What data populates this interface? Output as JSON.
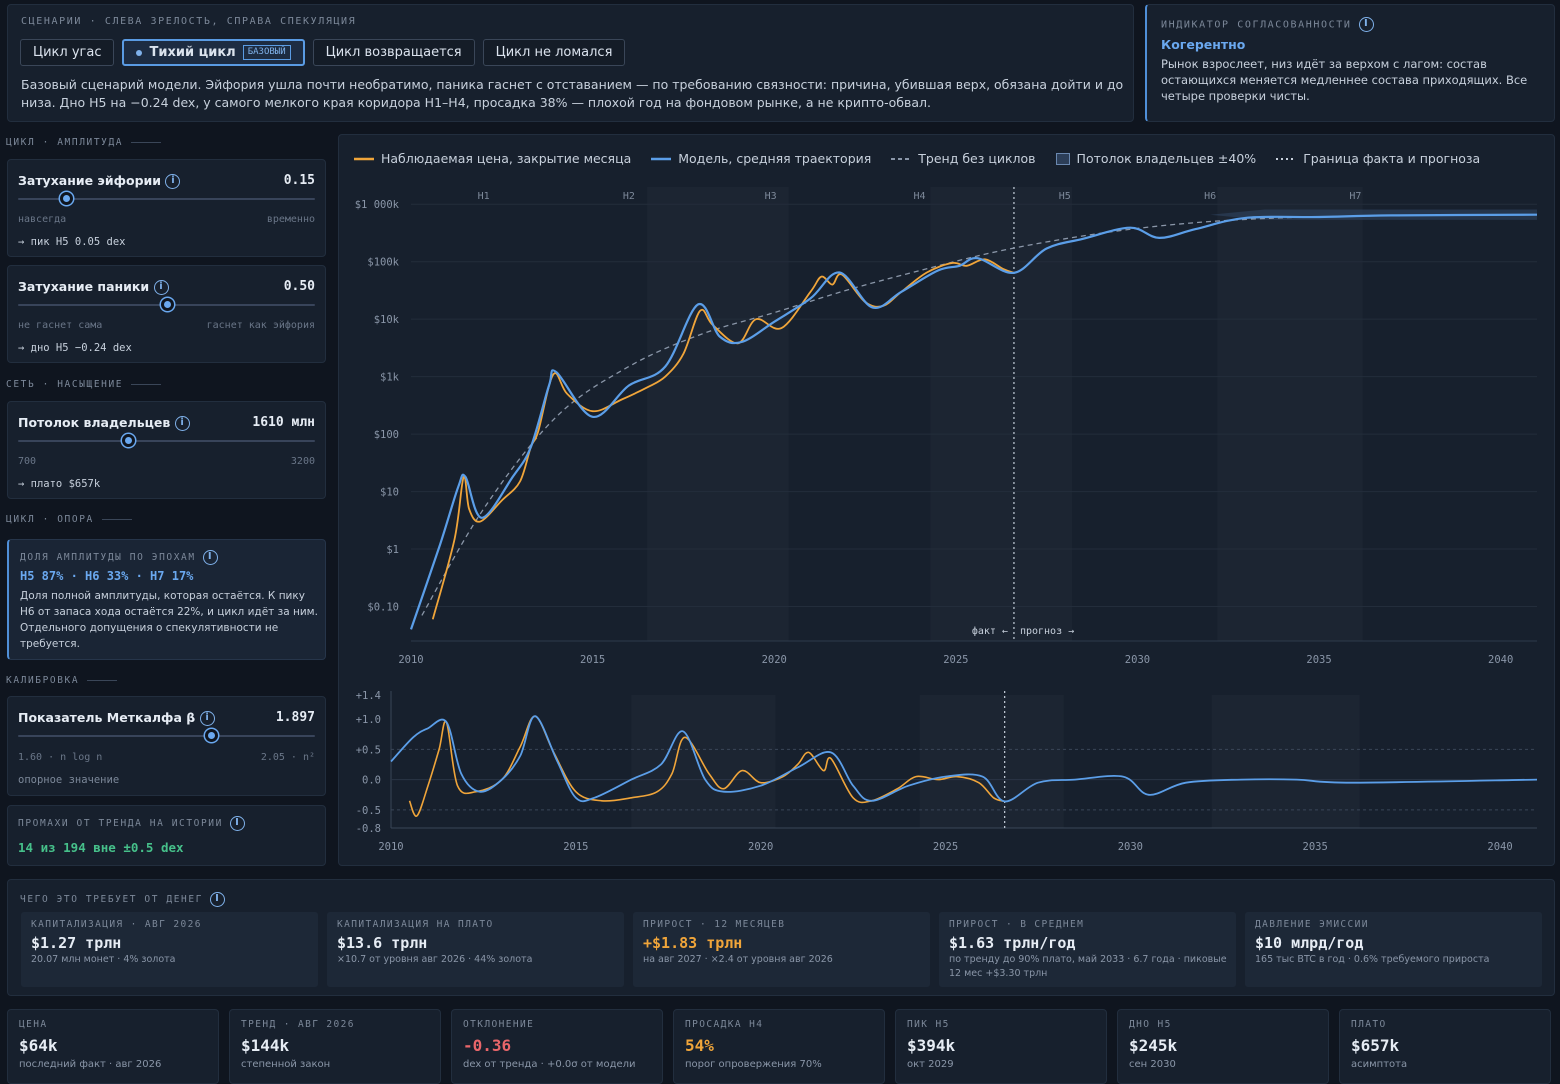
{
  "scenarios": {
    "caption": "СЦЕНАРИИ · СЛЕВА ЗРЕЛОСТЬ, СПРАВА СПЕКУЛЯЦИЯ",
    "tabs": [
      {
        "label": "Цикл угас"
      },
      {
        "label": "Тихий цикл",
        "badge": "БАЗОВЫЙ",
        "active": true
      },
      {
        "label": "Цикл возвращается"
      },
      {
        "label": "Цикл не ломался"
      }
    ],
    "description": "Базовый сценарий модели. Эйфория ушла почти необратимо, паника гаснет с отставанием — по требованию связности: причина, убившая верх, обязана дойти и до низа. Дно H5 на −0.24 dex, у самого мелкого края коридора H1–H4, просадка 38% — плохой год на фондовом рынке, а не крипто-обвал."
  },
  "coherence": {
    "caption": "ИНДИКАТОР СОГЛАСОВАННОСТИ",
    "status": "Когерентно",
    "text": "Рынок взрослеет, низ идёт за верхом с лагом: состав остающихся меняется медленнее состава приходящих. Все четыре проверки чисты."
  },
  "sidebar": {
    "section_amplitude": "ЦИКЛ · АМПЛИТУДА",
    "euphoria": {
      "label": "Затухание эйфории",
      "value": "0.15",
      "pos": 0.14,
      "left": "навсегда",
      "right": "временно",
      "result": "→ пик H5 0.05 dex"
    },
    "panic": {
      "label": "Затухание паники",
      "value": "0.50",
      "pos": 0.5,
      "left": "не гаснет сама",
      "right": "гаснет как эйфория",
      "result": "→ дно H5 −0.24 dex"
    },
    "section_network": "СЕТЬ · НАСЫЩЕНИЕ",
    "holders": {
      "label": "Потолок владельцев",
      "value": "1610 млн",
      "pos": 0.36,
      "left": "700",
      "right": "3200",
      "result": "→ плато $657k"
    },
    "section_support": "ЦИКЛ · ОПОРА",
    "amp_share": {
      "caption": "ДОЛЯ АМПЛИТУДЫ ПО ЭПОХАМ",
      "values": "H5 87% · H6 33% · H7 17%",
      "text": "Доля полной амплитуды, которая остаётся. К пику H6 от запаса хода остаётся 22%, и цикл идёт за ним. Отдельного допущения о спекулятивности не требуется."
    },
    "section_calibration": "КАЛИБРОВКА",
    "metcalfe": {
      "label": "Показатель Меткалфа β",
      "value": "1.897",
      "pos": 0.65,
      "left": "1.60 · n log n",
      "right": "2.05 · n²",
      "result": "опорное значение"
    },
    "misses": {
      "caption": "ПРОМАХИ ОТ ТРЕНДА НА ИСТОРИИ",
      "value": "14 из 194 вне ±0.5 dex"
    }
  },
  "legend": [
    {
      "label": "Наблюдаемая цена, закрытие месяца",
      "kind": "orange"
    },
    {
      "label": "Модель, средняя траектория",
      "kind": "blue"
    },
    {
      "label": "Тренд без циклов",
      "kind": "dash"
    },
    {
      "label": "Потолок владельцев ±40%",
      "kind": "band"
    },
    {
      "label": "Граница факта и прогноза",
      "kind": "dot"
    }
  ],
  "chart_data": [
    {
      "type": "line",
      "scale": "log",
      "y_ticks": [
        "$1 000k",
        "$100k",
        "$10k",
        "$1k",
        "$100",
        "$10",
        "$1",
        "$0.10"
      ],
      "x_ticks": [
        "2010",
        "2015",
        "2020",
        "2025",
        "2030",
        "2035",
        "2040"
      ],
      "halvings": [
        "H1",
        "H2",
        "H3",
        "H4",
        "H5",
        "H6",
        "H7"
      ],
      "fact_label": "факт ←",
      "forecast_label": "прогноз →",
      "series": [
        {
          "name": "Наблюдаемая цена, закрытие месяца",
          "color": "#f0a53a",
          "x": [
            2010.6,
            2011.2,
            2011.45,
            2011.6,
            2011.9,
            2012.5,
            2013.0,
            2013.3,
            2013.5,
            2013.92,
            2014.3,
            2015.0,
            2015.8,
            2016.5,
            2017.0,
            2017.5,
            2017.96,
            2018.3,
            2019.0,
            2019.5,
            2020.2,
            2021.0,
            2021.3,
            2021.6,
            2021.86,
            2022.5,
            2023.0,
            2023.5,
            2024.2,
            2024.9,
            2025.3,
            2025.8,
            2026.3,
            2026.6
          ],
          "values": [
            0.06,
            1.5,
            18,
            5,
            3,
            7,
            15,
            60,
            110,
            1100,
            500,
            250,
            400,
            650,
            1000,
            2500,
            14000,
            8000,
            3800,
            10000,
            7000,
            30000,
            55000,
            40000,
            60000,
            20000,
            17000,
            30000,
            65000,
            95000,
            85000,
            110000,
            75000,
            64000
          ]
        },
        {
          "name": "Модель, средняя траектория",
          "color": "#5b9ee8",
          "x": [
            2010.0,
            2010.8,
            2011.3,
            2011.5,
            2011.95,
            2012.8,
            2013.3,
            2013.8,
            2014.0,
            2015.0,
            2016.0,
            2017.0,
            2017.9,
            2018.5,
            2019.1,
            2020.0,
            2021.0,
            2021.8,
            2022.7,
            2023.5,
            2024.5,
            2025.1,
            2025.6,
            2026.6,
            2027.5,
            2028.5,
            2029.8,
            2030.6,
            2031.6,
            2033.0,
            2035.0,
            2037.0,
            2041.0
          ],
          "values": [
            0.04,
            1.2,
            12,
            18,
            3.5,
            18,
            60,
            700,
            1200,
            200,
            700,
            1500,
            18000,
            5000,
            4000,
            9000,
            23000,
            65000,
            16000,
            30000,
            70000,
            85000,
            115000,
            64000,
            170000,
            250000,
            390000,
            260000,
            370000,
            580000,
            600000,
            640000,
            657000
          ]
        },
        {
          "name": "Тренд без циклов",
          "color": "#8a96a8",
          "x": [
            2010.3,
            2012,
            2014,
            2016,
            2018,
            2020,
            2022,
            2024,
            2026,
            2028,
            2030,
            2032,
            2034,
            2036,
            2038,
            2041
          ],
          "values": [
            0.07,
            5,
            200,
            1500,
            5500,
            13000,
            32000,
            70000,
            144000,
            250000,
            380000,
            500000,
            580000,
            620000,
            645000,
            657000
          ]
        }
      ]
    },
    {
      "type": "line",
      "y_ticks": [
        "+1.4",
        "+1.0",
        "+0.5",
        "0.0",
        "-0.5",
        "-0.8"
      ],
      "x_ticks": [
        "2010",
        "2015",
        "2020",
        "2025",
        "2030",
        "2035",
        "2040"
      ],
      "series": [
        {
          "name": "Наблюдаемая цена, закрытие месяца",
          "color": "#f0a53a",
          "x": [
            2010.5,
            2010.7,
            2011.0,
            2011.3,
            2011.5,
            2011.8,
            2012.3,
            2013.0,
            2013.5,
            2013.9,
            2014.4,
            2015.0,
            2015.7,
            2016.5,
            2017.2,
            2017.6,
            2017.95,
            2018.6,
            2019.0,
            2019.5,
            2020.0,
            2020.6,
            2021.0,
            2021.3,
            2021.7,
            2021.9,
            2022.5,
            2023.0,
            2023.7,
            2024.2,
            2024.8,
            2025.3,
            2025.9,
            2026.3,
            2026.6
          ],
          "values": [
            -0.35,
            -0.6,
            -0.1,
            0.5,
            0.95,
            -0.1,
            -0.2,
            0.0,
            0.55,
            1.05,
            0.45,
            -0.2,
            -0.35,
            -0.3,
            -0.2,
            0.1,
            0.7,
            0.1,
            -0.15,
            0.15,
            -0.05,
            0.05,
            0.25,
            0.45,
            0.15,
            0.35,
            -0.3,
            -0.35,
            -0.15,
            0.05,
            0.0,
            0.05,
            -0.05,
            -0.3,
            -0.36
          ]
        },
        {
          "name": "Модель, средняя траектория",
          "color": "#5b9ee8",
          "x": [
            2010.0,
            2010.6,
            2011.0,
            2011.5,
            2011.9,
            2012.4,
            2013.0,
            2013.5,
            2013.9,
            2014.5,
            2015.0,
            2015.5,
            2016.5,
            2017.3,
            2017.9,
            2018.5,
            2019.0,
            2020.0,
            2021.0,
            2021.9,
            2022.5,
            2023.0,
            2024.0,
            2025.0,
            2026.0,
            2026.6,
            2027.5,
            2028.5,
            2029.8,
            2030.5,
            2031.5,
            2033.0,
            2034.5,
            2036.0,
            2041.0
          ],
          "values": [
            0.3,
            0.7,
            0.85,
            0.95,
            0.1,
            -0.2,
            0.0,
            0.4,
            1.05,
            0.3,
            -0.3,
            -0.3,
            0.0,
            0.25,
            0.8,
            0.0,
            -0.2,
            -0.1,
            0.2,
            0.45,
            -0.1,
            -0.35,
            -0.1,
            0.05,
            0.05,
            -0.36,
            -0.05,
            0.0,
            0.05,
            -0.25,
            -0.05,
            0.0,
            0.0,
            -0.05,
            0.0
          ]
        }
      ]
    }
  ],
  "cost": {
    "caption": "ЧЕГО ЭТО ТРЕБУЕТ ОТ ДЕНЕГ",
    "cards": [
      {
        "title": "КАПИТАЛИЗАЦИЯ · АВГ 2026",
        "value": "$1.27 трлн",
        "sub": "20.07 млн монет · 4% золота",
        "accent": "#e6ecf4"
      },
      {
        "title": "КАПИТАЛИЗАЦИЯ НА ПЛАТО",
        "value": "$13.6 трлн",
        "sub": "×10.7 от уровня авг 2026 · 44% золота",
        "accent": "#e6ecf4"
      },
      {
        "title": "ПРИРОСТ · 12 МЕСЯЦЕВ",
        "value": "+$1.83 трлн",
        "sub": "на авг 2027 · ×2.4 от уровня авг 2026",
        "accent": "#f0a53a"
      },
      {
        "title": "ПРИРОСТ · В СРЕДНЕМ",
        "value": "$1.63 трлн/год",
        "sub": "по тренду до 90% плато, май 2033 · 6.7 года · пиковые 12 мес +$3.30 трлн",
        "accent": "#e6ecf4"
      },
      {
        "title": "ДАВЛЕНИЕ ЭМИССИИ",
        "value": "$10 млрд/год",
        "sub": "165 тыс BTC в год · 0.6% требуемого прироста",
        "accent": "#e6ecf4"
      }
    ]
  },
  "stats": [
    {
      "title": "ЦЕНА",
      "value": "$64k",
      "sub": "последний факт · авг 2026",
      "accent": "#e6ecf4"
    },
    {
      "title": "ТРЕНД · АВГ 2026",
      "value": "$144k",
      "sub": "степенной закон",
      "accent": "#e6ecf4"
    },
    {
      "title": "ОТКЛОНЕНИЕ",
      "value": "-0.36",
      "sub": "dex от тренда · +0.0σ от модели",
      "accent": "#e8666a"
    },
    {
      "title": "ПРОСАДКА H4",
      "value": "54%",
      "sub": "порог опровержения 70%",
      "accent": "#f0a53a"
    },
    {
      "title": "ПИК H5",
      "value": "$394k",
      "sub": "окт 2029",
      "accent": "#e6ecf4"
    },
    {
      "title": "ДНО H5",
      "value": "$245k",
      "sub": "сен 2030",
      "accent": "#e6ecf4"
    },
    {
      "title": "ПЛАТО",
      "value": "$657k",
      "sub": "асимптота",
      "accent": "#e6ecf4"
    }
  ]
}
